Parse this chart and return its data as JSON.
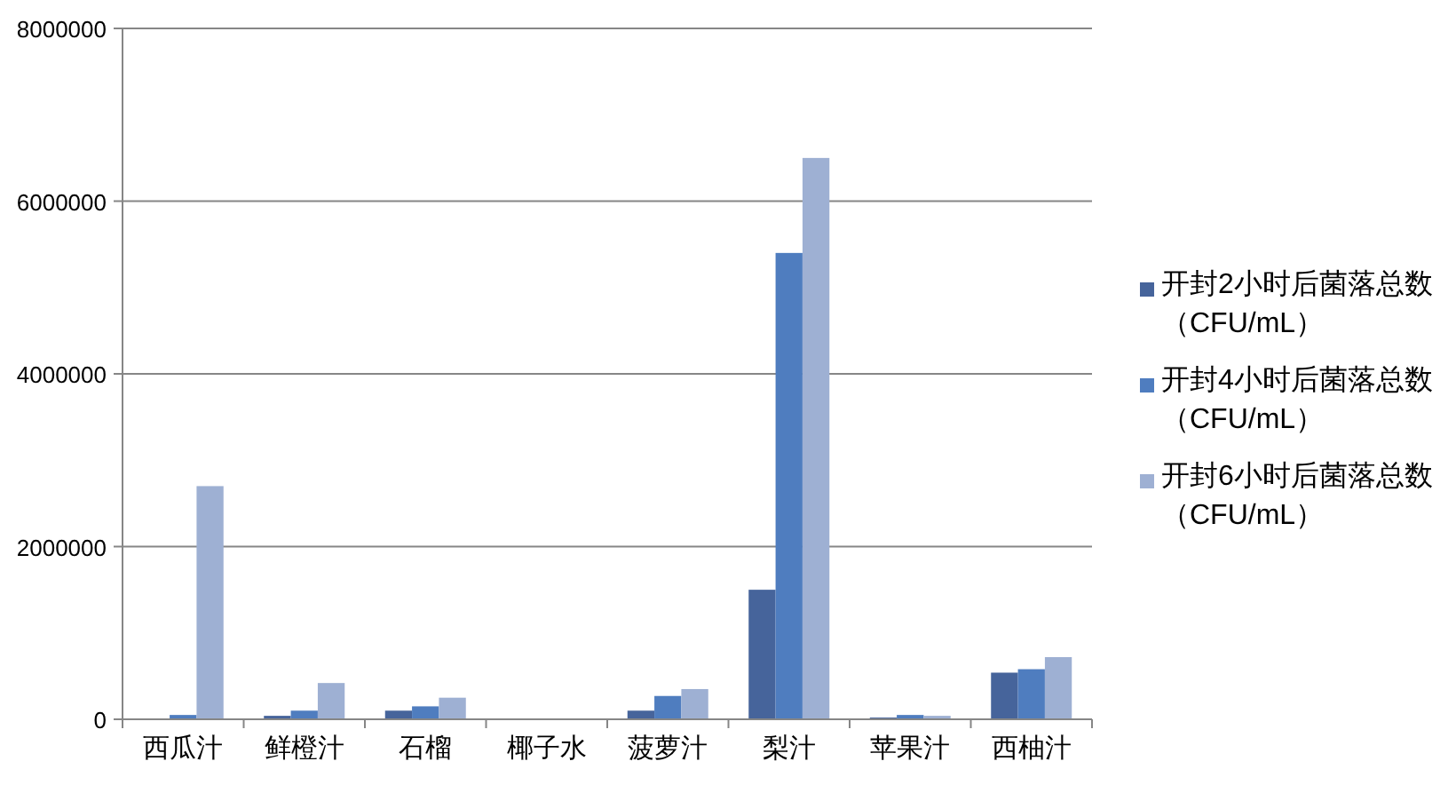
{
  "chart_data": {
    "type": "bar",
    "categories": [
      "西瓜汁",
      "鲜橙汁",
      "石榴",
      "椰子水",
      "菠萝汁",
      "梨汁",
      "苹果汁",
      "西柚汁"
    ],
    "series": [
      {
        "name": "开封2小时后菌落总数（CFU/mL）",
        "color": "#46649b",
        "values": [
          0,
          40000,
          100000,
          0,
          100000,
          1500000,
          20000,
          540000
        ]
      },
      {
        "name": "开封4小时后菌落总数（CFU/mL）",
        "color": "#4f7dbf",
        "values": [
          50000,
          100000,
          150000,
          0,
          270000,
          5400000,
          50000,
          580000
        ]
      },
      {
        "name": "开封6小时后菌落总数（CFU/mL）",
        "color": "#9eb0d3",
        "values": [
          2700000,
          420000,
          250000,
          0,
          350000,
          6500000,
          40000,
          720000
        ]
      }
    ],
    "ylim": [
      0,
      8000000
    ],
    "yticks": [
      0,
      2000000,
      4000000,
      6000000,
      8000000
    ],
    "grid": "y",
    "legend": "right"
  }
}
